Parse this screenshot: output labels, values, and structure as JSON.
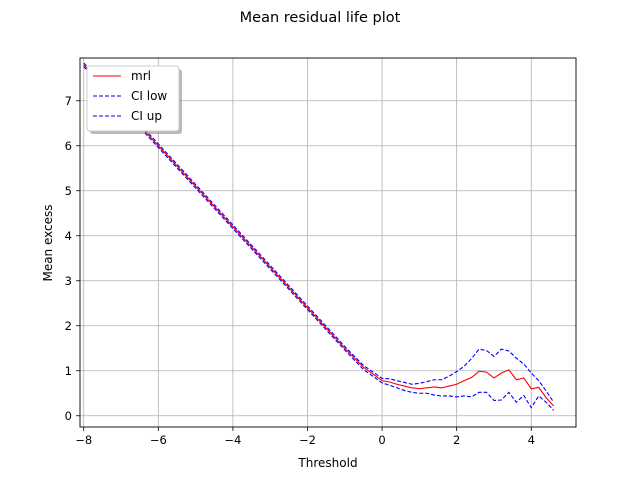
{
  "chart_data": {
    "type": "line",
    "title": "Mean residual life plot",
    "xlabel": "Threshold",
    "ylabel": "Mean excess",
    "xlim": [
      -8.1,
      5.2
    ],
    "ylim": [
      -0.25,
      7.95
    ],
    "xticks": [
      -8,
      -6,
      -4,
      -2,
      0,
      2,
      4
    ],
    "xtick_labels": [
      "−8",
      "−6",
      "−4",
      "−2",
      "0",
      "2",
      "4"
    ],
    "yticks": [
      0,
      1,
      2,
      3,
      4,
      5,
      6,
      7
    ],
    "ytick_labels": [
      "0",
      "1",
      "2",
      "3",
      "4",
      "5",
      "6",
      "7"
    ],
    "grid": true,
    "legend": "upper-left",
    "colors": {
      "mrl": "#ff0000",
      "ci": "#0000ff",
      "grid": "#b0b0b0"
    },
    "series": [
      {
        "name": "mrl",
        "style": "solid",
        "x": [
          -8.0,
          -7.5,
          -7.0,
          -6.5,
          -6.0,
          -5.5,
          -5.0,
          -4.5,
          -4.0,
          -3.5,
          -3.0,
          -2.5,
          -2.0,
          -1.5,
          -1.0,
          -0.5,
          0.0,
          0.2,
          0.4,
          0.6,
          0.8,
          1.0,
          1.2,
          1.4,
          1.6,
          1.8,
          2.0,
          2.2,
          2.4,
          2.6,
          2.8,
          3.0,
          3.2,
          3.4,
          3.6,
          3.8,
          4.0,
          4.2,
          4.4,
          4.6
        ],
        "y": [
          7.8,
          7.35,
          6.9,
          6.45,
          6.0,
          5.55,
          5.1,
          4.65,
          4.2,
          3.75,
          3.3,
          2.85,
          2.4,
          1.95,
          1.5,
          1.08,
          0.78,
          0.75,
          0.7,
          0.66,
          0.62,
          0.6,
          0.62,
          0.64,
          0.62,
          0.66,
          0.7,
          0.78,
          0.85,
          0.99,
          0.97,
          0.84,
          0.95,
          1.02,
          0.8,
          0.84,
          0.6,
          0.63,
          0.4,
          0.22
        ]
      },
      {
        "name": "CI low",
        "style": "dashed",
        "x": [
          -8.0,
          -7.5,
          -7.0,
          -6.5,
          -6.0,
          -5.5,
          -5.0,
          -4.5,
          -4.0,
          -3.5,
          -3.0,
          -2.5,
          -2.0,
          -1.5,
          -1.0,
          -0.5,
          0.0,
          0.2,
          0.4,
          0.6,
          0.8,
          1.0,
          1.2,
          1.4,
          1.6,
          1.8,
          2.0,
          2.2,
          2.4,
          2.6,
          2.8,
          3.0,
          3.2,
          3.4,
          3.6,
          3.8,
          4.0,
          4.2,
          4.4,
          4.6
        ],
        "y": [
          7.76,
          7.31,
          6.86,
          6.41,
          5.96,
          5.51,
          5.06,
          4.61,
          4.16,
          3.71,
          3.26,
          2.81,
          2.36,
          1.91,
          1.46,
          1.03,
          0.73,
          0.68,
          0.62,
          0.56,
          0.52,
          0.5,
          0.5,
          0.46,
          0.44,
          0.44,
          0.42,
          0.44,
          0.42,
          0.52,
          0.52,
          0.34,
          0.35,
          0.52,
          0.3,
          0.45,
          0.18,
          0.44,
          0.3,
          0.12
        ]
      },
      {
        "name": "CI up",
        "style": "dashed",
        "x": [
          -8.0,
          -7.5,
          -7.0,
          -6.5,
          -6.0,
          -5.5,
          -5.0,
          -4.5,
          -4.0,
          -3.5,
          -3.0,
          -2.5,
          -2.0,
          -1.5,
          -1.0,
          -0.5,
          0.0,
          0.2,
          0.4,
          0.6,
          0.8,
          1.0,
          1.2,
          1.4,
          1.6,
          1.8,
          2.0,
          2.2,
          2.4,
          2.6,
          2.8,
          3.0,
          3.2,
          3.4,
          3.6,
          3.8,
          4.0,
          4.2,
          4.4,
          4.6
        ],
        "y": [
          7.84,
          7.39,
          6.94,
          6.49,
          6.04,
          5.59,
          5.14,
          4.69,
          4.24,
          3.79,
          3.34,
          2.89,
          2.44,
          1.99,
          1.54,
          1.12,
          0.83,
          0.82,
          0.78,
          0.74,
          0.7,
          0.72,
          0.76,
          0.8,
          0.8,
          0.88,
          0.98,
          1.1,
          1.27,
          1.48,
          1.45,
          1.32,
          1.48,
          1.44,
          1.28,
          1.15,
          0.95,
          0.78,
          0.55,
          0.3
        ]
      }
    ]
  }
}
